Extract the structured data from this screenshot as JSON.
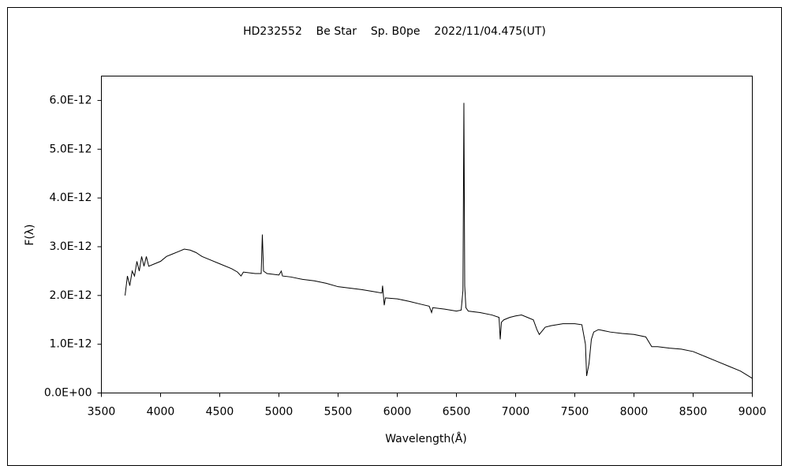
{
  "chart_data": {
    "type": "line",
    "title": "HD232552    Be Star    Sp. B0pe    2022/11/04.475(UT)",
    "x_label": "Wavelength(Å)",
    "y_label": "F(λ)",
    "color": "#000000",
    "grid": false,
    "xlim": [
      3500,
      9000
    ],
    "xticks": [
      3500,
      4000,
      4500,
      5000,
      5500,
      6000,
      6500,
      7000,
      7500,
      8000,
      8500,
      9000
    ],
    "ylim": [
      0,
      6.5e-12
    ],
    "yticks": [
      {
        "value": 0,
        "label": "0.0E+00"
      },
      {
        "value": 1e-12,
        "label": "1.0E-12"
      },
      {
        "value": 2e-12,
        "label": "2.0E-12"
      },
      {
        "value": 3e-12,
        "label": "3.0E-12"
      },
      {
        "value": 4e-12,
        "label": "4.0E-12"
      },
      {
        "value": 5e-12,
        "label": "5.0E-12"
      },
      {
        "value": 6e-12,
        "label": "6.0E-12"
      }
    ],
    "x": [
      3700,
      3720,
      3740,
      3760,
      3780,
      3800,
      3820,
      3840,
      3860,
      3880,
      3900,
      3950,
      4000,
      4050,
      4100,
      4150,
      4200,
      4250,
      4300,
      4350,
      4400,
      4500,
      4600,
      4650,
      4680,
      4700,
      4800,
      4850,
      4860,
      4870,
      4900,
      5000,
      5020,
      5030,
      5100,
      5200,
      5300,
      5400,
      5500,
      5600,
      5700,
      5800,
      5870,
      5876,
      5890,
      5900,
      6000,
      6100,
      6200,
      6270,
      6290,
      6300,
      6400,
      6500,
      6540,
      6555,
      6563,
      6570,
      6580,
      6600,
      6700,
      6800,
      6860,
      6870,
      6880,
      6900,
      6950,
      7000,
      7050,
      7100,
      7150,
      7180,
      7200,
      7250,
      7300,
      7400,
      7500,
      7560,
      7590,
      7600,
      7620,
      7640,
      7660,
      7700,
      7800,
      7900,
      8000,
      8100,
      8150,
      8200,
      8300,
      8400,
      8500,
      8600,
      8700,
      8800,
      8900,
      9000
    ],
    "values": [
      2e-12,
      2.4e-12,
      2.2e-12,
      2.5e-12,
      2.4e-12,
      2.7e-12,
      2.5e-12,
      2.8e-12,
      2.6e-12,
      2.8e-12,
      2.6e-12,
      2.65e-12,
      2.7e-12,
      2.8e-12,
      2.85e-12,
      2.9e-12,
      2.95e-12,
      2.93e-12,
      2.88e-12,
      2.8e-12,
      2.75e-12,
      2.65e-12,
      2.55e-12,
      2.48e-12,
      2.4e-12,
      2.48e-12,
      2.45e-12,
      2.45e-12,
      3.25e-12,
      2.5e-12,
      2.45e-12,
      2.42e-12,
      2.5e-12,
      2.4e-12,
      2.38e-12,
      2.33e-12,
      2.3e-12,
      2.25e-12,
      2.18e-12,
      2.15e-12,
      2.12e-12,
      2.08e-12,
      2.05e-12,
      2.2e-12,
      1.8e-12,
      1.95e-12,
      1.93e-12,
      1.88e-12,
      1.82e-12,
      1.78e-12,
      1.65e-12,
      1.75e-12,
      1.72e-12,
      1.68e-12,
      1.7e-12,
      2.1e-12,
      5.95e-12,
      2.2e-12,
      1.75e-12,
      1.68e-12,
      1.65e-12,
      1.6e-12,
      1.55e-12,
      1.1e-12,
      1.45e-12,
      1.5e-12,
      1.55e-12,
      1.58e-12,
      1.6e-12,
      1.55e-12,
      1.5e-12,
      1.3e-12,
      1.2e-12,
      1.35e-12,
      1.38e-12,
      1.42e-12,
      1.42e-12,
      1.4e-12,
      1e-12,
      3.5e-13,
      6e-13,
      1.1e-12,
      1.25e-12,
      1.3e-12,
      1.25e-12,
      1.22e-12,
      1.2e-12,
      1.15e-12,
      9.5e-13,
      9.5e-13,
      9.2e-13,
      9e-13,
      8.5e-13,
      7.5e-13,
      6.5e-13,
      5.5e-13,
      4.5e-13,
      3e-13
    ]
  }
}
